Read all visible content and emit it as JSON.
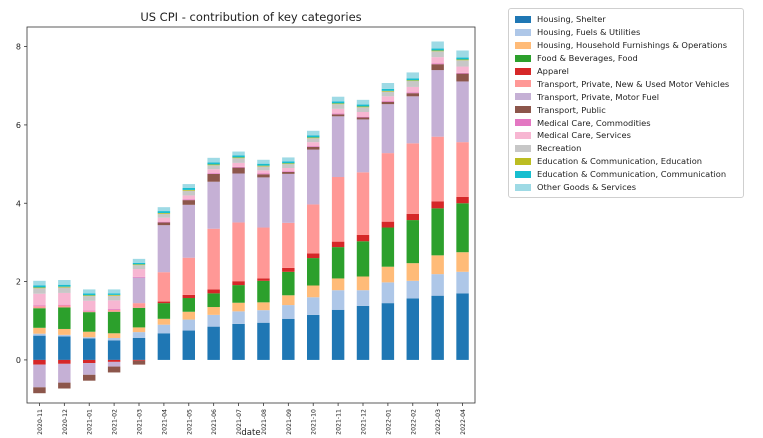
{
  "chart_data": {
    "type": "bar",
    "stacked": true,
    "title": "US CPI - contribution of key categories",
    "xlabel": "date",
    "ylabel": "",
    "ylim": [
      -1.1,
      8.5
    ],
    "yticks": [
      0,
      2,
      4,
      6,
      8
    ],
    "grid": false,
    "legend_position": "outside-right-top",
    "categories": [
      "2020-11",
      "2020-12",
      "2021-01",
      "2021-02",
      "2021-03",
      "2021-04",
      "2021-05",
      "2021-06",
      "2021-07",
      "2021-08",
      "2021-09",
      "2021-10",
      "2021-11",
      "2021-12",
      "2022-01",
      "2022-02",
      "2022-03",
      "2022-04"
    ],
    "series": [
      {
        "name": "Housing, Shelter",
        "color": "#1f77b4",
        "values": [
          0.62,
          0.6,
          0.55,
          0.5,
          0.56,
          0.68,
          0.75,
          0.85,
          0.92,
          0.95,
          1.05,
          1.15,
          1.28,
          1.38,
          1.45,
          1.57,
          1.64,
          1.7
        ]
      },
      {
        "name": "Housing, Fuels & Utilities",
        "color": "#aec7e8",
        "values": [
          0.05,
          0.04,
          0.03,
          0.06,
          0.15,
          0.22,
          0.28,
          0.3,
          0.32,
          0.32,
          0.35,
          0.45,
          0.5,
          0.4,
          0.53,
          0.45,
          0.55,
          0.55
        ]
      },
      {
        "name": "Housing, Household Furnishings & Operations",
        "color": "#ffbb78",
        "values": [
          0.15,
          0.15,
          0.14,
          0.12,
          0.12,
          0.15,
          0.2,
          0.2,
          0.22,
          0.2,
          0.25,
          0.3,
          0.3,
          0.35,
          0.4,
          0.45,
          0.48,
          0.5
        ]
      },
      {
        "name": "Food & Beverages, Food",
        "color": "#2ca02c",
        "values": [
          0.5,
          0.55,
          0.5,
          0.55,
          0.5,
          0.4,
          0.35,
          0.35,
          0.45,
          0.55,
          0.6,
          0.7,
          0.8,
          0.9,
          1.0,
          1.1,
          1.2,
          1.25
        ]
      },
      {
        "name": "Apparel",
        "color": "#d62728",
        "values": [
          -0.12,
          -0.1,
          -0.08,
          -0.05,
          -0.02,
          0.04,
          0.08,
          0.1,
          0.1,
          0.06,
          0.1,
          0.12,
          0.14,
          0.16,
          0.15,
          0.16,
          0.18,
          0.16
        ]
      },
      {
        "name": "Transport, Private, New & Used Motor Vehicles",
        "color": "#ff9896",
        "values": [
          0.05,
          0.05,
          0.02,
          0.05,
          0.12,
          0.75,
          0.95,
          1.55,
          1.5,
          1.3,
          1.15,
          1.25,
          1.65,
          1.6,
          1.75,
          1.8,
          1.65,
          1.4
        ]
      },
      {
        "name": "Transport, Private, Motor Fuel",
        "color": "#c5b0d5",
        "values": [
          -0.58,
          -0.48,
          -0.3,
          -0.12,
          0.65,
          1.2,
          1.35,
          1.2,
          1.25,
          1.28,
          1.25,
          1.4,
          1.55,
          1.35,
          1.25,
          1.2,
          1.7,
          1.55
        ]
      },
      {
        "name": "Transport, Public",
        "color": "#8c564b",
        "values": [
          -0.15,
          -0.15,
          -0.15,
          -0.15,
          -0.1,
          0.07,
          0.12,
          0.2,
          0.15,
          0.08,
          0.05,
          0.07,
          0.05,
          0.05,
          0.06,
          0.08,
          0.15,
          0.2
        ]
      },
      {
        "name": "Medical Care, Commodities",
        "color": "#e377c2",
        "values": [
          0.02,
          0.02,
          0.02,
          0.02,
          0.02,
          0.02,
          0.02,
          0.02,
          0.02,
          0.02,
          0.02,
          0.02,
          0.02,
          0.02,
          0.02,
          0.02,
          0.02,
          0.02
        ]
      },
      {
        "name": "Medical Care, Services",
        "color": "#f7b6d2",
        "values": [
          0.3,
          0.3,
          0.25,
          0.22,
          0.2,
          0.1,
          0.1,
          0.1,
          0.1,
          0.08,
          0.08,
          0.1,
          0.12,
          0.12,
          0.12,
          0.14,
          0.16,
          0.16
        ]
      },
      {
        "name": "Recreation",
        "color": "#c7c7c7",
        "values": [
          0.14,
          0.14,
          0.12,
          0.12,
          0.1,
          0.1,
          0.12,
          0.1,
          0.12,
          0.1,
          0.1,
          0.1,
          0.12,
          0.12,
          0.12,
          0.15,
          0.15,
          0.16
        ]
      },
      {
        "name": "Education & Communication, Education",
        "color": "#bcbd22",
        "values": [
          0.02,
          0.02,
          0.02,
          0.02,
          0.02,
          0.02,
          0.02,
          0.02,
          0.02,
          0.02,
          0.02,
          0.02,
          0.02,
          0.02,
          0.02,
          0.02,
          0.02,
          0.02
        ]
      },
      {
        "name": "Education & Communication, Communication",
        "color": "#17becf",
        "values": [
          0.05,
          0.05,
          0.05,
          0.04,
          0.04,
          0.05,
          0.05,
          0.05,
          0.05,
          0.05,
          0.05,
          0.05,
          0.05,
          0.05,
          0.05,
          0.05,
          0.05,
          0.05
        ]
      },
      {
        "name": "Other Goods & Services",
        "color": "#9edae5",
        "values": [
          0.12,
          0.12,
          0.1,
          0.1,
          0.1,
          0.1,
          0.1,
          0.12,
          0.1,
          0.1,
          0.1,
          0.12,
          0.12,
          0.12,
          0.15,
          0.15,
          0.18,
          0.18
        ]
      }
    ]
  }
}
